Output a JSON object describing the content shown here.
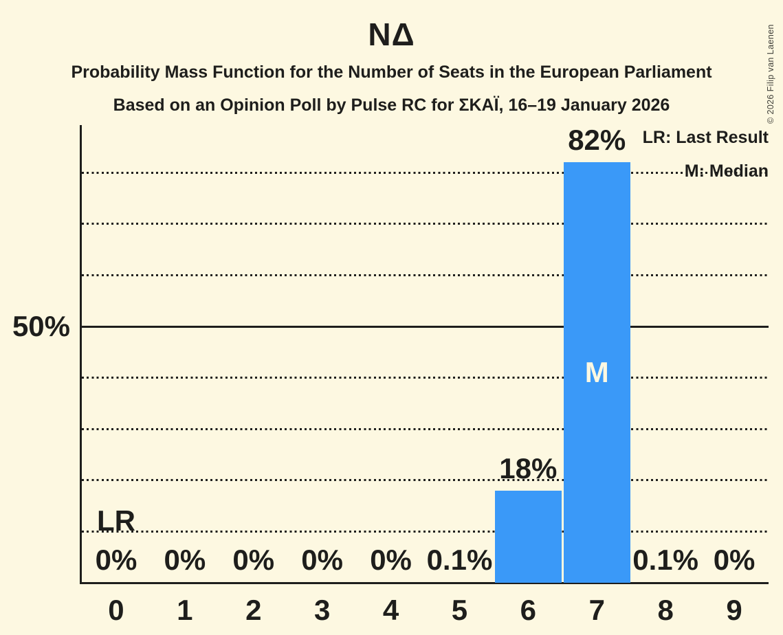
{
  "title": "ΝΔ",
  "subtitle1": "Probability Mass Function for the Number of Seats in the European Parliament",
  "subtitle2": "Based on an Opinion Poll by Pulse RC for ΣΚΑΪ, 16–19 January 2026",
  "copyright": "© 2026 Filip van Laenen",
  "legend": {
    "lr": "LR: Last Result",
    "m": "M: Median"
  },
  "colors": {
    "background": "#FDF8E1",
    "bar": "#3A99F8",
    "text": "#1E1E1C",
    "bar_text": "#FDF8E1"
  },
  "chart_data": {
    "type": "bar",
    "title": "ΝΔ",
    "xlabel": "",
    "ylabel": "",
    "categories": [
      "0",
      "1",
      "2",
      "3",
      "4",
      "5",
      "6",
      "7",
      "8",
      "9"
    ],
    "values": [
      0,
      0,
      0,
      0,
      0,
      0.1,
      18,
      82,
      0.1,
      0
    ],
    "value_labels": [
      "0%",
      "0%",
      "0%",
      "0%",
      "0%",
      "0.1%",
      "18%",
      "82%",
      "0.1%",
      "0%"
    ],
    "ytick_label": "50%",
    "ytick_percent": 50,
    "ylim": [
      0,
      89
    ],
    "gridlines_percent": [
      10,
      20,
      30,
      40,
      50,
      60,
      70,
      80
    ],
    "solid_gridline_percent": 50,
    "grid": "dotted horizontal",
    "legend_position": "top-right",
    "median": {
      "category": "7",
      "label": "M"
    },
    "last_result": {
      "category": "0",
      "label": "LR"
    }
  }
}
